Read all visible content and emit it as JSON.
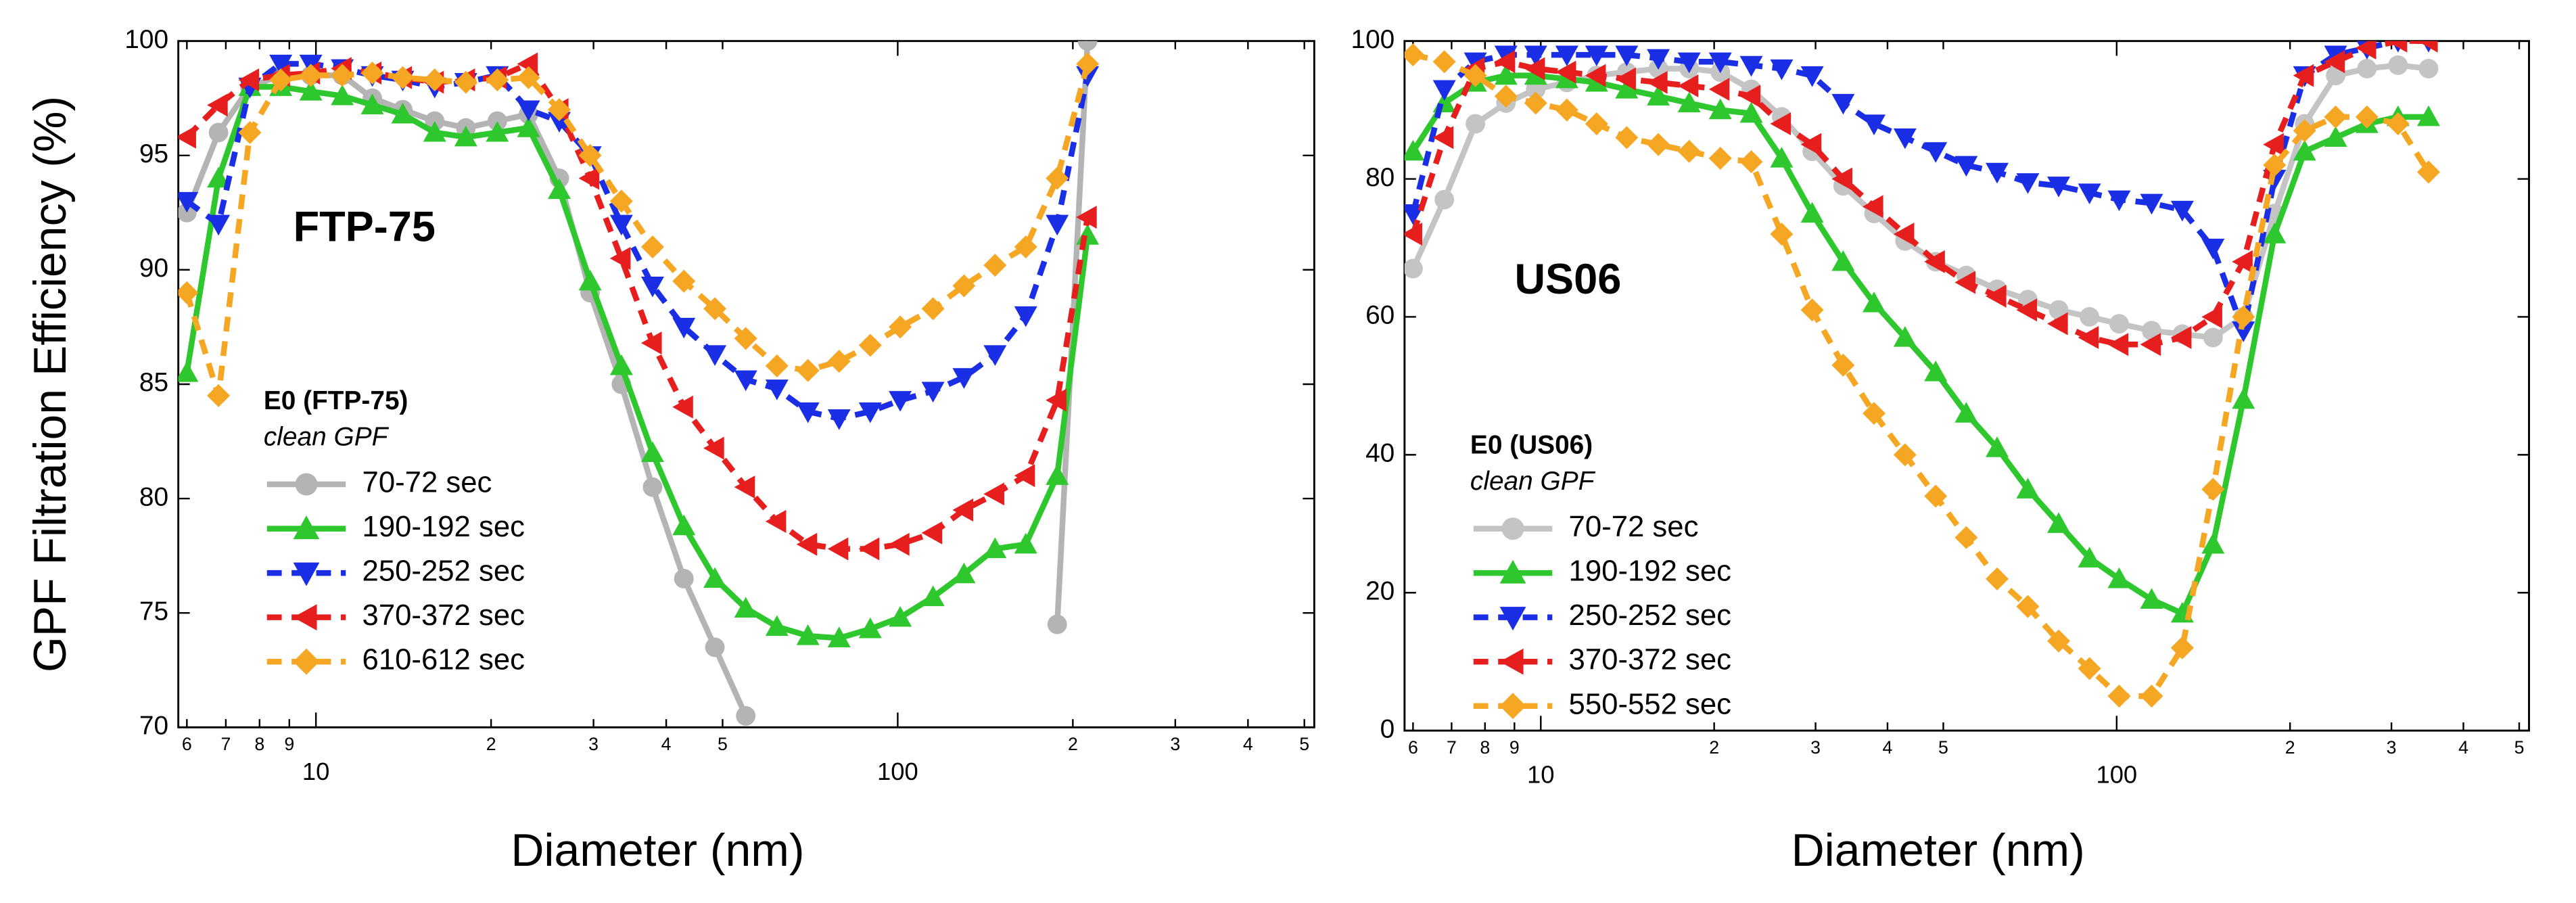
{
  "chart_data": [
    {
      "type": "line",
      "y_label": "GPF Filtration Efficiency (%)",
      "x_label": "Diameter (nm)",
      "annotation": "FTP-75",
      "legend_title": "E0 (FTP-75)",
      "legend_subtitle": "clean GPF",
      "log_x": true,
      "xlim": [
        5.8,
        520
      ],
      "ylim": [
        70,
        100
      ],
      "xticks": [
        6,
        7,
        8,
        9,
        10,
        {
          "value": 20,
          "label": "2"
        },
        {
          "value": 30,
          "label": "3"
        },
        {
          "value": 40,
          "label": "4"
        },
        {
          "value": 50,
          "label": "5"
        },
        100,
        {
          "value": 200,
          "label": "2"
        },
        {
          "value": 300,
          "label": "3"
        },
        {
          "value": 400,
          "label": "4"
        },
        {
          "value": 500,
          "label": "5"
        }
      ],
      "yticks": [
        70,
        75,
        80,
        85,
        90,
        95,
        100
      ],
      "x": [
        6,
        6.8,
        7.7,
        8.7,
        9.8,
        11.1,
        12.5,
        14.1,
        16,
        18.1,
        20.5,
        23.2,
        26.2,
        29.6,
        33.5,
        37.9,
        42.9,
        48.5,
        54.8,
        62,
        70.1,
        79.3,
        89.7,
        101,
        115,
        130,
        147,
        166,
        188,
        212
      ],
      "series": [
        {
          "name": "70-72 sec",
          "color": "#b4b4b4",
          "marker": "circle",
          "dashed": false,
          "values": [
            92.5,
            96,
            98,
            98.5,
            98.5,
            98.5,
            97.5,
            97,
            96.5,
            96.2,
            96.5,
            96.8,
            94,
            89,
            85,
            80.5,
            76.5,
            73.5,
            70.5,
            null,
            null,
            null,
            null,
            null,
            null,
            null,
            null,
            null,
            74.5,
            100
          ]
        },
        {
          "name": "190-192 sec",
          "color": "#2ec82e",
          "marker": "triangle-up",
          "dashed": false,
          "values": [
            85.5,
            94,
            98,
            98,
            97.8,
            97.6,
            97.2,
            96.8,
            96,
            95.8,
            96,
            96.2,
            93.5,
            89.5,
            85.8,
            82,
            78.8,
            76.5,
            75.2,
            74.4,
            74,
            73.9,
            74.3,
            74.8,
            75.7,
            76.7,
            77.8,
            78,
            81,
            91.5
          ]
        },
        {
          "name": "250-252 sec",
          "color": "#1a2ee6",
          "marker": "triangle-down",
          "dashed": true,
          "values": [
            93,
            92,
            98,
            99,
            99,
            98.8,
            98.5,
            98.3,
            98,
            98.2,
            98.5,
            97,
            96.5,
            95,
            92,
            89.3,
            87.5,
            86.3,
            85.2,
            84.8,
            83.8,
            83.5,
            83.8,
            84.3,
            84.7,
            85.3,
            86.3,
            88,
            92,
            98.5
          ]
        },
        {
          "name": "370-372 sec",
          "color": "#e61e1e",
          "marker": "triangle-left",
          "dashed": true,
          "values": [
            95.8,
            97.2,
            98.3,
            98.5,
            98.6,
            98.8,
            98.6,
            98.4,
            98.2,
            98.3,
            98.4,
            99,
            97,
            94,
            90.5,
            86.8,
            84,
            82.2,
            80.5,
            79,
            78,
            77.8,
            77.8,
            78,
            78.5,
            79.5,
            80.2,
            81,
            84.3,
            92.3
          ]
        },
        {
          "name": "610-612 sec",
          "color": "#f5a623",
          "marker": "diamond",
          "dashed": true,
          "values": [
            89,
            84.5,
            96,
            98.3,
            98.5,
            98.5,
            98.6,
            98.4,
            98.3,
            98.2,
            98.3,
            98.4,
            97,
            95,
            93,
            91,
            89.5,
            88.3,
            87,
            85.8,
            85.6,
            86,
            86.7,
            87.5,
            88.3,
            89.3,
            90.2,
            91,
            94,
            99
          ]
        }
      ]
    },
    {
      "type": "line",
      "x_label": "Diameter (nm)",
      "annotation": "US06",
      "legend_title": "E0 (US06)",
      "legend_subtitle": "clean GPF",
      "log_x": true,
      "xlim": [
        5.8,
        520
      ],
      "ylim": [
        0,
        100
      ],
      "xticks": [
        6,
        7,
        8,
        9,
        10,
        {
          "value": 20,
          "label": "2"
        },
        {
          "value": 30,
          "label": "3"
        },
        {
          "value": 40,
          "label": "4"
        },
        {
          "value": 50,
          "label": "5"
        },
        100,
        {
          "value": 200,
          "label": "2"
        },
        {
          "value": 300,
          "label": "3"
        },
        {
          "value": 400,
          "label": "4"
        },
        {
          "value": 500,
          "label": "5"
        }
      ],
      "yticks": [
        0,
        20,
        40,
        60,
        80,
        100
      ],
      "x": [
        6,
        6.8,
        7.7,
        8.7,
        9.8,
        11.1,
        12.5,
        14.1,
        16,
        18.1,
        20.5,
        23.2,
        26.2,
        29.6,
        33.5,
        37.9,
        42.9,
        48.5,
        54.8,
        62,
        70.1,
        79.3,
        89.7,
        101,
        115,
        130,
        147,
        166,
        188,
        212,
        240,
        272,
        308,
        348
      ],
      "series": [
        {
          "name": "70-72 sec",
          "color": "#c4c4c4",
          "marker": "circle",
          "dashed": false,
          "values": [
            67,
            77,
            88,
            91,
            93,
            94,
            95,
            95.5,
            96,
            96,
            95.5,
            93,
            89,
            84,
            79,
            75,
            71,
            68,
            66,
            64,
            62.5,
            61,
            60,
            59,
            58,
            57.5,
            57,
            60,
            75,
            88,
            95,
            96,
            96.5,
            96
          ]
        },
        {
          "name": "190-192 sec",
          "color": "#2ec82e",
          "marker": "triangle-up",
          "dashed": false,
          "values": [
            84,
            91,
            94,
            95,
            95,
            94.5,
            94,
            93,
            92,
            91,
            90,
            89.5,
            83,
            75,
            68,
            62,
            57,
            52,
            46,
            41,
            35,
            30,
            25,
            22,
            19,
            17,
            27,
            48,
            72,
            84,
            86,
            88,
            89,
            89
          ]
        },
        {
          "name": "250-252 sec",
          "color": "#1a2ee6",
          "marker": "triangle-down",
          "dashed": true,
          "values": [
            75,
            93,
            97,
            98,
            98,
            98,
            98,
            98,
            97.5,
            97,
            97,
            96.5,
            96,
            95,
            91,
            88,
            86,
            84,
            82,
            81,
            79.5,
            79,
            78,
            77,
            76.5,
            75.5,
            70,
            58,
            80,
            95,
            98,
            99,
            100,
            100
          ]
        },
        {
          "name": "370-372 sec",
          "color": "#e61e1e",
          "marker": "triangle-left",
          "dashed": true,
          "values": [
            72,
            86,
            96,
            97,
            96,
            95.5,
            95,
            94.5,
            94,
            93.5,
            93,
            92,
            88,
            85,
            80,
            76,
            72,
            68,
            65,
            63,
            61,
            59,
            57,
            56,
            56,
            57,
            60,
            68,
            85,
            95,
            97,
            99,
            100,
            100
          ]
        },
        {
          "name": "550-552 sec",
          "color": "#f5a623",
          "marker": "diamond",
          "dashed": true,
          "values": [
            98,
            97,
            95,
            92,
            91,
            90,
            88,
            86,
            85,
            84,
            83,
            82.5,
            72,
            61,
            53,
            46,
            40,
            34,
            28,
            22,
            18,
            13,
            9,
            5,
            5,
            12,
            35,
            60,
            82,
            87,
            89,
            89,
            88,
            81
          ]
        }
      ]
    }
  ]
}
